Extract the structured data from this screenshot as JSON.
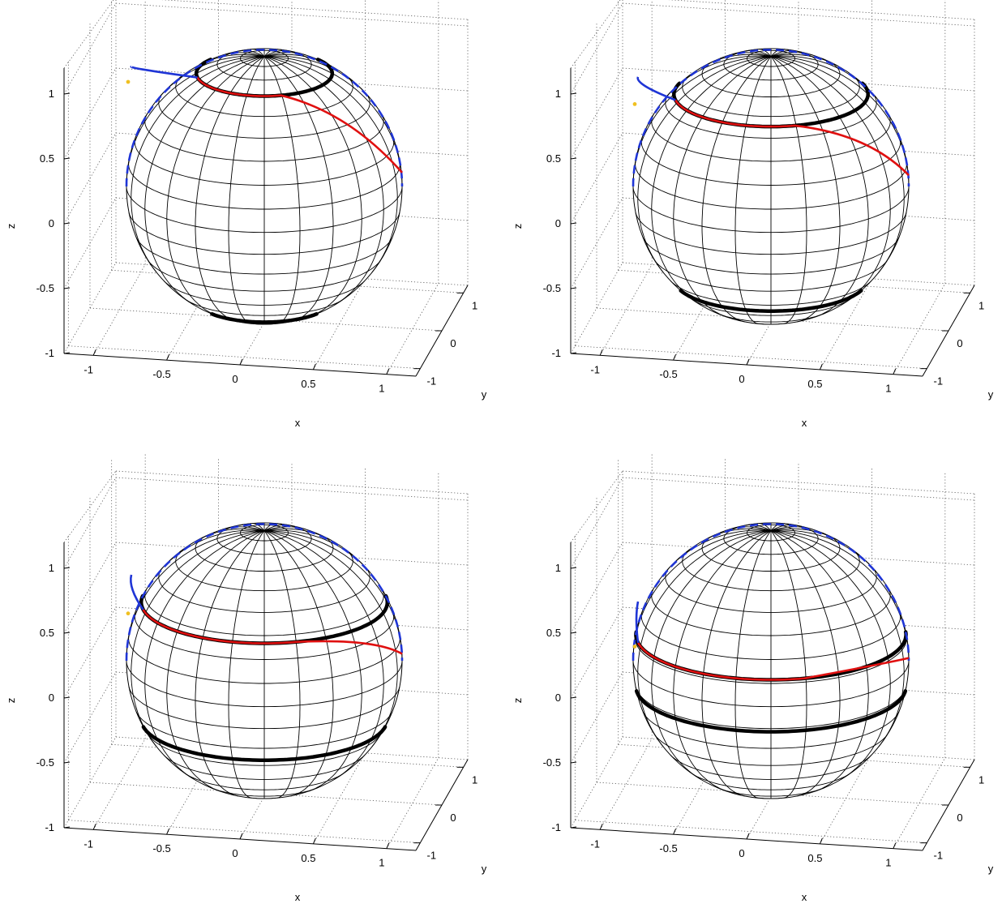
{
  "colors": {
    "sphere_grid": "#000000",
    "box_lines": "#000000",
    "gridline": "#555555",
    "band": "#000000",
    "great_circle": "#1f35d6",
    "trajectory": "#e01010",
    "start_point": "#f0c020"
  },
  "chart_data": [
    {
      "type": "scatter",
      "title": "",
      "xlabel": "x",
      "ylabel": "y",
      "zlabel": "z",
      "xlim": [
        -1.2,
        1.2
      ],
      "ylim": [
        -1.2,
        1.2
      ],
      "zlim": [
        -1,
        1.2
      ],
      "x_ticks": [
        "-1",
        "-0.5",
        "0",
        "0.5",
        "1"
      ],
      "y_ticks": [
        "-1",
        "0",
        "1"
      ],
      "z_ticks": [
        "-1",
        "-0.5",
        "0",
        "0.5",
        "1"
      ],
      "grid": true,
      "band_latitudes": [
        0.87,
        -0.87
      ],
      "trajectory_latitude": 0.87,
      "great_circle": "dashed"
    },
    {
      "type": "scatter",
      "title": "",
      "xlabel": "x",
      "ylabel": "y",
      "zlabel": "z",
      "xlim": [
        -1.2,
        1.2
      ],
      "ylim": [
        -1.2,
        1.2
      ],
      "zlim": [
        -1,
        1.2
      ],
      "x_ticks": [
        "-1",
        "-0.5",
        "0",
        "0.5",
        "1"
      ],
      "y_ticks": [
        "-1",
        "0",
        "1"
      ],
      "z_ticks": [
        "-1",
        "-0.5",
        "0",
        "0.5",
        "1"
      ],
      "grid": true,
      "band_latitudes": [
        0.71,
        -0.71
      ],
      "trajectory_latitude": 0.71,
      "great_circle": "dashed"
    },
    {
      "type": "scatter",
      "title": "",
      "xlabel": "x",
      "ylabel": "y",
      "zlabel": "z",
      "xlim": [
        -1.2,
        1.2
      ],
      "ylim": [
        -1.2,
        1.2
      ],
      "zlim": [
        -1,
        1.2
      ],
      "x_ticks": [
        "-1",
        "-0.5",
        "0",
        "0.5",
        "1"
      ],
      "y_ticks": [
        "-1",
        "0",
        "1"
      ],
      "z_ticks": [
        "-1",
        "-0.5",
        "0",
        "0.5",
        "1"
      ],
      "grid": true,
      "band_latitudes": [
        0.45,
        -0.45
      ],
      "trajectory_latitude": 0.45,
      "great_circle": "dashed"
    },
    {
      "type": "scatter",
      "title": "",
      "xlabel": "x",
      "ylabel": "y",
      "zlabel": "z",
      "xlim": [
        -1.2,
        1.2
      ],
      "ylim": [
        -1.2,
        1.2
      ],
      "zlim": [
        -1,
        1.2
      ],
      "x_ticks": [
        "-1",
        "-0.5",
        "0",
        "0.5",
        "1"
      ],
      "y_ticks": [
        "-1",
        "0",
        "1"
      ],
      "z_ticks": [
        "-1",
        "-0.5",
        "0",
        "0.5",
        "1"
      ],
      "grid": true,
      "band_latitudes": [
        0.2,
        -0.2
      ],
      "trajectory_latitude": 0.2,
      "great_circle": "dashed"
    }
  ]
}
